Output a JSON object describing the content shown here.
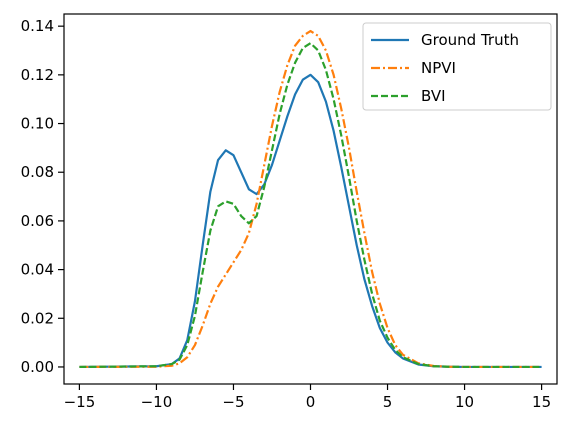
{
  "chart_data": {
    "type": "line",
    "title": "",
    "xlabel": "",
    "ylabel": "",
    "xlim": [
      -16,
      16
    ],
    "ylim": [
      -0.007,
      0.145
    ],
    "x_ticks": [
      -15,
      -10,
      -5,
      0,
      5,
      10,
      15
    ],
    "x_tick_labels": [
      "−15",
      "−10",
      "−5",
      "0",
      "5",
      "10",
      "15"
    ],
    "y_ticks": [
      0.0,
      0.02,
      0.04,
      0.06,
      0.08,
      0.1,
      0.12,
      0.14
    ],
    "y_tick_labels": [
      "0.00",
      "0.02",
      "0.04",
      "0.06",
      "0.08",
      "0.10",
      "0.12",
      "0.14"
    ],
    "grid": false,
    "legend_position": "top-right",
    "series": [
      {
        "name": "Ground Truth",
        "color": "#1f77b4",
        "dash": "solid",
        "x": [
          -15,
          -10,
          -9,
          -8.5,
          -8,
          -7.5,
          -7,
          -6.5,
          -6,
          -5.5,
          -5,
          -4.5,
          -4,
          -3.5,
          -3,
          -2.5,
          -2,
          -1.5,
          -1,
          -0.5,
          0,
          0.5,
          1,
          1.5,
          2,
          2.5,
          3,
          3.5,
          4,
          4.5,
          5,
          5.5,
          6,
          7,
          8,
          9,
          10,
          15
        ],
        "y": [
          0.0,
          0.0003,
          0.0012,
          0.0035,
          0.011,
          0.027,
          0.05,
          0.072,
          0.085,
          0.089,
          0.087,
          0.08,
          0.073,
          0.071,
          0.075,
          0.083,
          0.093,
          0.103,
          0.112,
          0.118,
          0.12,
          0.117,
          0.109,
          0.097,
          0.082,
          0.066,
          0.05,
          0.036,
          0.025,
          0.016,
          0.01,
          0.006,
          0.0035,
          0.001,
          0.0003,
          0.0001,
          0.0,
          0.0
        ]
      },
      {
        "name": "NPVI",
        "color": "#ff7f0e",
        "dash": "dashdot",
        "x": [
          -15,
          -10,
          -9,
          -8.5,
          -8,
          -7.5,
          -7,
          -6.5,
          -6,
          -5.5,
          -5,
          -4.5,
          -4,
          -3.5,
          -3,
          -2.5,
          -2,
          -1.5,
          -1,
          -0.5,
          0,
          0.5,
          1,
          1.5,
          2,
          2.5,
          3,
          3.5,
          4,
          4.5,
          5,
          5.5,
          6,
          7,
          8,
          9,
          10,
          15
        ],
        "y": [
          0.0,
          0.0001,
          0.0005,
          0.0015,
          0.004,
          0.009,
          0.017,
          0.026,
          0.033,
          0.038,
          0.043,
          0.048,
          0.055,
          0.067,
          0.083,
          0.099,
          0.113,
          0.124,
          0.132,
          0.136,
          0.138,
          0.136,
          0.13,
          0.12,
          0.106,
          0.09,
          0.072,
          0.055,
          0.039,
          0.026,
          0.016,
          0.009,
          0.005,
          0.0015,
          0.0004,
          0.0001,
          0.0,
          0.0
        ]
      },
      {
        "name": "BVI",
        "color": "#2ca02c",
        "dash": "dashed",
        "x": [
          -15,
          -10,
          -9,
          -8.5,
          -8,
          -7.5,
          -7,
          -6.5,
          -6,
          -5.5,
          -5,
          -4.5,
          -4,
          -3.5,
          -3,
          -2.5,
          -2,
          -1.5,
          -1,
          -0.5,
          0,
          0.5,
          1,
          1.5,
          2,
          2.5,
          3,
          3.5,
          4,
          4.5,
          5,
          5.5,
          6,
          7,
          8,
          9,
          10,
          15
        ],
        "y": [
          0.0,
          0.0003,
          0.0012,
          0.003,
          0.009,
          0.021,
          0.039,
          0.056,
          0.066,
          0.068,
          0.067,
          0.062,
          0.059,
          0.062,
          0.074,
          0.089,
          0.104,
          0.116,
          0.125,
          0.131,
          0.133,
          0.13,
          0.122,
          0.11,
          0.095,
          0.078,
          0.06,
          0.044,
          0.03,
          0.019,
          0.012,
          0.007,
          0.004,
          0.0012,
          0.0003,
          0.0001,
          0.0,
          0.0
        ]
      }
    ]
  }
}
